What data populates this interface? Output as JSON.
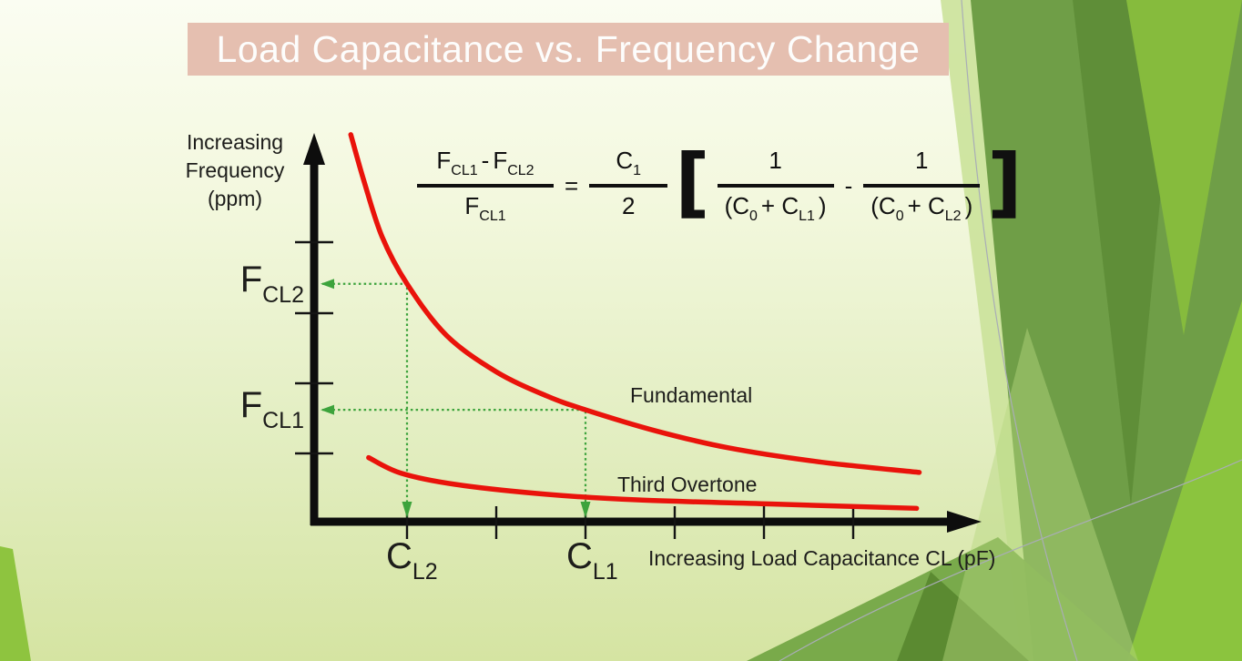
{
  "slide": {
    "title": "Load Capacitance vs. Frequency Change"
  },
  "colors": {
    "title_bar_bg": "#e5bfb0",
    "title_text": "#fdfdfc",
    "curve_red": "#e9130b",
    "projection_green": "#3da33c",
    "axis_black": "#0d0d0d",
    "facet_dark_green": "#6f9e47",
    "facet_bright_green": "#8bc43e"
  },
  "axis": {
    "y_label_lines": [
      "Increasing",
      "Frequency",
      "(ppm)"
    ],
    "x_label": "Increasing Load Capacitance CL (pF)"
  },
  "markers": {
    "fcl2": {
      "b": "F",
      "s": "CL2"
    },
    "fcl1": {
      "b": "F",
      "s": "CL1"
    },
    "cl2": {
      "b": "C",
      "s": "L2"
    },
    "cl1": {
      "b": "C",
      "s": "L1"
    }
  },
  "curve_labels": {
    "fundamental": "Fundamental",
    "third_overtone": "Third Overtone"
  },
  "formula": {
    "lhs_num": [
      {
        "b": "F",
        "s": "CL1"
      },
      {
        "b": "-",
        "s": ""
      },
      {
        "b": "F",
        "s": "CL2"
      }
    ],
    "lhs_den": [
      {
        "b": "F",
        "s": "CL1"
      }
    ],
    "eq": "=",
    "rhs_num": [
      {
        "b": "C",
        "s": "1"
      }
    ],
    "rhs_den": [
      {
        "b": "2",
        "s": ""
      }
    ],
    "lbracket": "[",
    "term1_num": [
      {
        "b": "1",
        "s": ""
      }
    ],
    "term1_den": [
      {
        "b": "(C",
        "s": "0"
      },
      {
        "b": "+ C",
        "s": "L1"
      },
      {
        "b": ")",
        "s": ""
      }
    ],
    "minus": "-",
    "term2_num": [
      {
        "b": "1",
        "s": ""
      }
    ],
    "term2_den": [
      {
        "b": "(C",
        "s": "0"
      },
      {
        "b": "+ C",
        "s": "L2"
      },
      {
        "b": ")",
        "s": ""
      }
    ],
    "rbracket": "]"
  },
  "chart_data": {
    "type": "line",
    "title": "Load Capacitance vs. Frequency Change",
    "xlabel": "Increasing Load Capacitance CL (pF)",
    "ylabel": "Increasing Frequency (ppm)",
    "grid": false,
    "legend_position": "inline-labels",
    "x_axis": {
      "qualitative": true,
      "tick_units": [
        1,
        2,
        3,
        4,
        5,
        6
      ]
    },
    "y_axis": {
      "qualitative": true,
      "tick_units": [
        1,
        2,
        3,
        4
      ]
    },
    "series": [
      {
        "name": "Fundamental",
        "color": "#e9130b",
        "x": [
          0.37,
          0.52,
          0.72,
          1.0,
          1.44,
          2.0,
          2.56,
          3.0,
          3.79,
          4.6,
          5.62,
          6.74
        ],
        "y": [
          5.5,
          4.83,
          4.05,
          3.38,
          2.65,
          2.13,
          1.79,
          1.59,
          1.29,
          1.05,
          0.85,
          0.7
        ]
      },
      {
        "name": "Third Overtone",
        "color": "#e9130b",
        "x": [
          0.57,
          0.93,
          1.54,
          2.56,
          3.58,
          5.11,
          6.71
        ],
        "y": [
          0.91,
          0.69,
          0.53,
          0.39,
          0.31,
          0.25,
          0.19
        ]
      }
    ],
    "annotations": {
      "projection_color": "#3da33c",
      "projections": [
        {
          "x_label": "CL2",
          "y_label": "FCL2",
          "x": 1.0,
          "y": 3.38
        },
        {
          "x_label": "CL1",
          "y_label": "FCL1",
          "x": 3.0,
          "y": 1.59
        }
      ],
      "formula_text": "(FCL1 - FCL2)/FCL1 = (C1/2)[1/(C0+CL1) - 1/(C0+CL2)]"
    }
  }
}
